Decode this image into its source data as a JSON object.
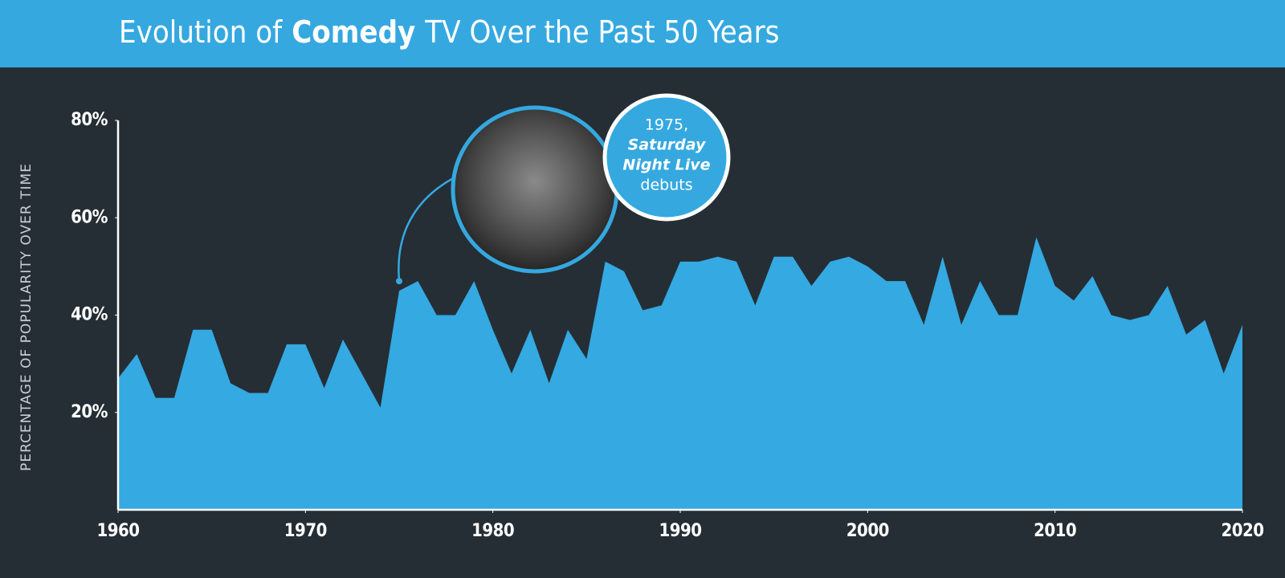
{
  "chart_data": {
    "type": "area",
    "title": [
      "Evolution of",
      "Comedy",
      "TV Over the Past 50 Years"
    ],
    "y_axis_label": "PERCENTAGE OF POPULARITY OVER TIME",
    "color": "#35a9e1",
    "x": [
      1960,
      1961,
      1962,
      1963,
      1964,
      1965,
      1966,
      1967,
      1968,
      1969,
      1970,
      1971,
      1972,
      1973,
      1974,
      1975,
      1976,
      1977,
      1978,
      1979,
      1980,
      1981,
      1982,
      1983,
      1984,
      1985,
      1986,
      1987,
      1988,
      1989,
      1990,
      1991,
      1992,
      1993,
      1994,
      1995,
      1996,
      1997,
      1998,
      1999,
      2000,
      2001,
      2002,
      2003,
      2004,
      2005,
      2006,
      2007,
      2008,
      2009,
      2010,
      2011,
      2012,
      2013,
      2014,
      2015,
      2016,
      2017,
      2018,
      2019,
      2020
    ],
    "values": [
      27,
      32,
      23,
      23,
      37,
      37,
      26,
      24,
      24,
      34,
      34,
      25,
      35,
      28,
      21,
      45,
      47,
      40,
      40,
      47,
      37,
      28,
      37,
      26,
      37,
      31,
      51,
      49,
      41,
      42,
      51,
      51,
      52,
      51,
      42,
      52,
      52,
      46,
      51,
      52,
      50,
      47,
      47,
      38,
      52,
      38,
      47,
      40,
      40,
      56,
      46,
      43,
      48,
      40,
      39,
      40,
      46,
      36,
      39,
      28,
      38
    ],
    "xlim": [
      1960,
      2020
    ],
    "xticks": [
      1960,
      1970,
      1980,
      1990,
      2000,
      2010,
      2020
    ],
    "ylim": [
      0,
      80
    ],
    "yticks": [
      {
        "value": 20,
        "label": "20%"
      },
      {
        "value": 40,
        "label": "40%"
      },
      {
        "value": 60,
        "label": "60%"
      },
      {
        "value": 80,
        "label": "80%"
      }
    ],
    "annotation": {
      "x": 1975,
      "lines": [
        "1975,",
        "Saturday",
        "Night Live",
        "debuts"
      ]
    }
  }
}
